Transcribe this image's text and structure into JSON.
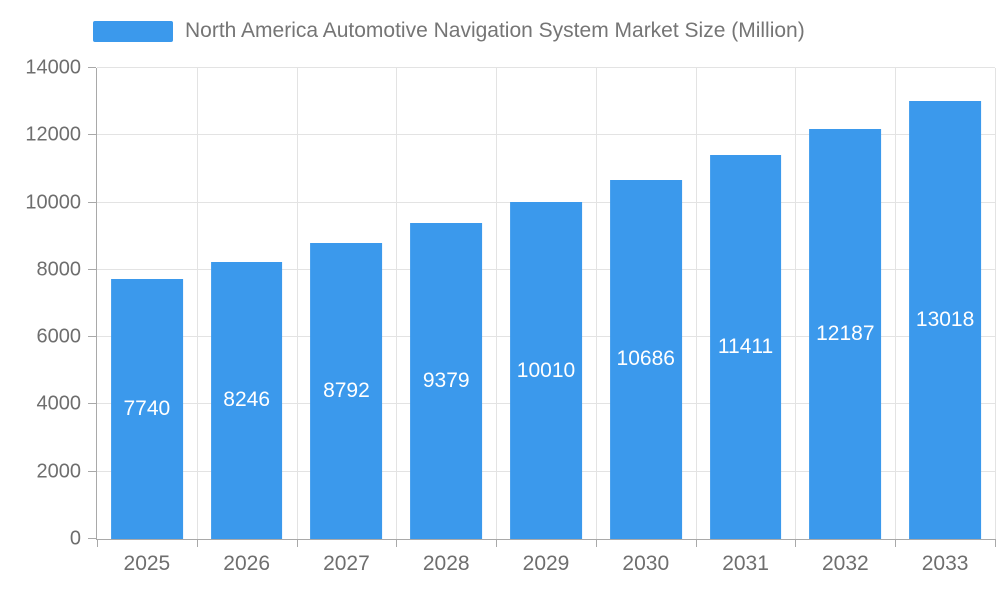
{
  "chart_data": {
    "type": "bar",
    "title": "North America Automotive Navigation System Market Size (Million)",
    "categories": [
      "2025",
      "2026",
      "2027",
      "2028",
      "2029",
      "2030",
      "2031",
      "2032",
      "2033"
    ],
    "values": [
      7740,
      8246,
      8792,
      9379,
      10010,
      10686,
      11411,
      12187,
      13018
    ],
    "xlabel": "",
    "ylabel": "",
    "ylim": [
      0,
      14000
    ],
    "ytick_step": 2000,
    "ytick_labels": [
      "0",
      "2000",
      "4000",
      "6000",
      "8000",
      "10000",
      "12000",
      "14000"
    ],
    "grid": "horizontal and vertical",
    "legend_position": "top-left",
    "value_labels": "white, centered inside bars",
    "colors": {
      "bar": "#3b99ec",
      "value_label": "#ffffff",
      "axis": "#a9a9a9",
      "gridline": "#e3e3e3",
      "text": "#6e6e6e",
      "legend_text": "#757575",
      "background": "#ffffff"
    }
  }
}
